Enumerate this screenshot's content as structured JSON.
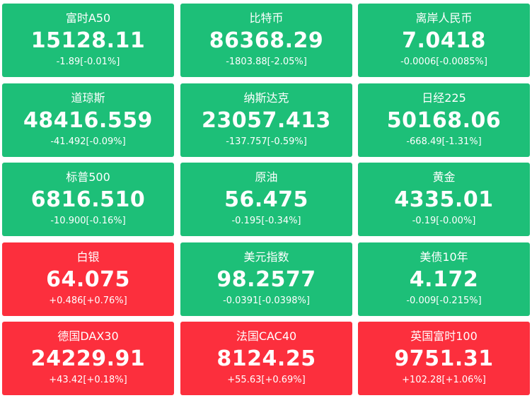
{
  "colors": {
    "up": "#fc2f3d",
    "down": "#1dbf78",
    "text": "#ffffff"
  },
  "quotes": [
    {
      "name": "富时A50",
      "price": "15128.11",
      "change": "-1.89[-0.01%]",
      "direction": "down"
    },
    {
      "name": "比特币",
      "price": "86368.29",
      "change": "-1803.88[-2.05%]",
      "direction": "down"
    },
    {
      "name": "离岸人民币",
      "price": "7.0418",
      "change": "-0.0006[-0.0085%]",
      "direction": "down"
    },
    {
      "name": "道琼斯",
      "price": "48416.559",
      "change": "-41.492[-0.09%]",
      "direction": "down"
    },
    {
      "name": "纳斯达克",
      "price": "23057.413",
      "change": "-137.757[-0.59%]",
      "direction": "down"
    },
    {
      "name": "日经225",
      "price": "50168.06",
      "change": "-668.49[-1.31%]",
      "direction": "down"
    },
    {
      "name": "标普500",
      "price": "6816.510",
      "change": "-10.900[-0.16%]",
      "direction": "down"
    },
    {
      "name": "原油",
      "price": "56.475",
      "change": "-0.195[-0.34%]",
      "direction": "down"
    },
    {
      "name": "黄金",
      "price": "4335.01",
      "change": "-0.19[-0.00%]",
      "direction": "down"
    },
    {
      "name": "白银",
      "price": "64.075",
      "change": "+0.486[+0.76%]",
      "direction": "up"
    },
    {
      "name": "美元指数",
      "price": "98.2577",
      "change": "-0.0391[-0.0398%]",
      "direction": "down"
    },
    {
      "name": "美债10年",
      "price": "4.172",
      "change": "-0.009[-0.215%]",
      "direction": "down"
    },
    {
      "name": "德国DAX30",
      "price": "24229.91",
      "change": "+43.42[+0.18%]",
      "direction": "up"
    },
    {
      "name": "法国CAC40",
      "price": "8124.25",
      "change": "+55.63[+0.69%]",
      "direction": "up"
    },
    {
      "name": "英国富时100",
      "price": "9751.31",
      "change": "+102.28[+1.06%]",
      "direction": "up"
    }
  ]
}
